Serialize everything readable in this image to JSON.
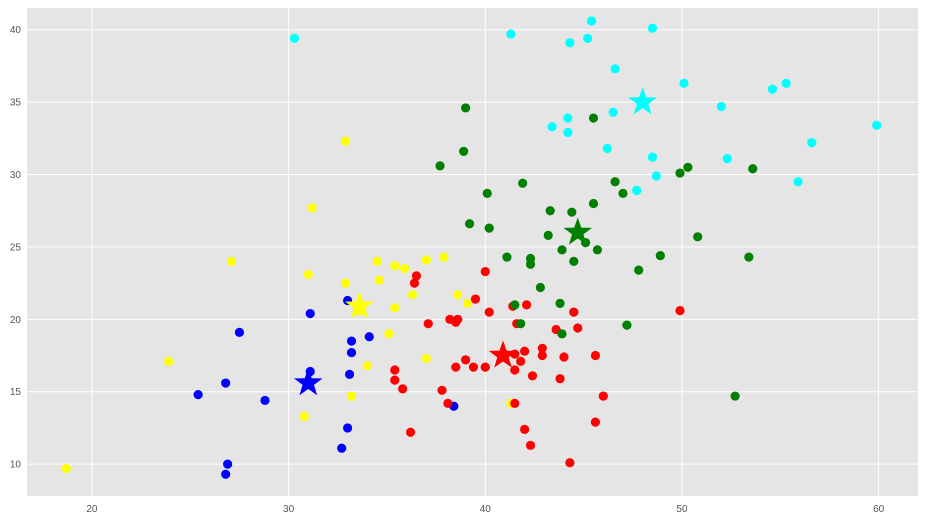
{
  "chart_data": {
    "type": "scatter",
    "title": "",
    "xlabel": "",
    "ylabel": "",
    "xlim": [
      16.7,
      62.0
    ],
    "ylim": [
      7.8,
      41.5
    ],
    "xticks": [
      20,
      30,
      40,
      50,
      60
    ],
    "yticks": [
      10,
      15,
      20,
      25,
      30,
      35,
      40
    ],
    "grid": true,
    "background": "#e5e5e5",
    "grid_color": "#ffffff",
    "series": [
      {
        "color": "#0000ff",
        "points": [
          [
            25.4,
            14.8
          ],
          [
            26.8,
            15.6
          ],
          [
            26.9,
            10.0
          ],
          [
            26.8,
            9.3
          ],
          [
            27.5,
            19.1
          ],
          [
            28.8,
            14.4
          ],
          [
            31.1,
            20.4
          ],
          [
            31.1,
            16.4
          ],
          [
            32.7,
            11.1
          ],
          [
            33.0,
            21.3
          ],
          [
            33.0,
            12.5
          ],
          [
            33.1,
            16.2
          ],
          [
            33.2,
            18.5
          ],
          [
            33.2,
            17.7
          ],
          [
            34.1,
            18.8
          ],
          [
            38.4,
            14.0
          ]
        ],
        "centroid": [
          31.0,
          15.6
        ]
      },
      {
        "color": "#ffff00",
        "points": [
          [
            18.7,
            9.7
          ],
          [
            23.9,
            17.1
          ],
          [
            27.1,
            24.0
          ],
          [
            30.8,
            13.3
          ],
          [
            31.0,
            23.1
          ],
          [
            31.2,
            27.7
          ],
          [
            32.9,
            32.3
          ],
          [
            32.9,
            22.5
          ],
          [
            33.2,
            14.7
          ],
          [
            33.6,
            20.6
          ],
          [
            34.0,
            16.8
          ],
          [
            34.5,
            24.0
          ],
          [
            34.6,
            22.7
          ],
          [
            35.1,
            19.0
          ],
          [
            35.4,
            23.7
          ],
          [
            35.4,
            20.8
          ],
          [
            35.9,
            23.5
          ],
          [
            36.3,
            21.7
          ],
          [
            36.5,
            23.0
          ],
          [
            37.0,
            24.1
          ],
          [
            37.0,
            17.3
          ],
          [
            37.9,
            24.3
          ],
          [
            38.6,
            21.7
          ],
          [
            39.1,
            21.1
          ],
          [
            41.3,
            14.2
          ]
        ],
        "centroid": [
          33.6,
          20.9
        ]
      },
      {
        "color": "#ff0000",
        "points": [
          [
            35.4,
            16.5
          ],
          [
            35.4,
            15.8
          ],
          [
            35.8,
            15.2
          ],
          [
            36.2,
            12.2
          ],
          [
            36.4,
            22.5
          ],
          [
            36.5,
            23.0
          ],
          [
            37.1,
            19.7
          ],
          [
            37.8,
            15.1
          ],
          [
            38.1,
            14.2
          ],
          [
            38.2,
            20.0
          ],
          [
            38.5,
            19.8
          ],
          [
            38.5,
            16.7
          ],
          [
            38.6,
            20.0
          ],
          [
            39.0,
            17.2
          ],
          [
            39.4,
            16.7
          ],
          [
            39.5,
            21.4
          ],
          [
            40.0,
            23.3
          ],
          [
            40.0,
            16.7
          ],
          [
            40.2,
            20.5
          ],
          [
            41.4,
            20.9
          ],
          [
            41.5,
            17.6
          ],
          [
            41.5,
            16.5
          ],
          [
            41.5,
            14.2
          ],
          [
            41.6,
            19.7
          ],
          [
            41.8,
            17.1
          ],
          [
            42.0,
            17.8
          ],
          [
            42.0,
            12.4
          ],
          [
            42.1,
            21.0
          ],
          [
            42.3,
            11.3
          ],
          [
            42.4,
            16.1
          ],
          [
            42.9,
            17.5
          ],
          [
            42.9,
            18.0
          ],
          [
            43.6,
            19.3
          ],
          [
            43.8,
            15.9
          ],
          [
            44.0,
            17.4
          ],
          [
            44.3,
            10.1
          ],
          [
            44.5,
            20.5
          ],
          [
            44.7,
            19.4
          ],
          [
            45.6,
            17.5
          ],
          [
            45.6,
            12.9
          ],
          [
            46.0,
            14.7
          ],
          [
            49.9,
            20.6
          ]
        ],
        "centroid": [
          40.9,
          17.5
        ]
      },
      {
        "color": "#008000",
        "points": [
          [
            37.7,
            30.6
          ],
          [
            38.9,
            31.6
          ],
          [
            39.0,
            34.6
          ],
          [
            39.2,
            26.6
          ],
          [
            40.1,
            28.7
          ],
          [
            40.2,
            26.3
          ],
          [
            41.1,
            24.3
          ],
          [
            41.5,
            21.0
          ],
          [
            41.8,
            19.7
          ],
          [
            41.9,
            29.4
          ],
          [
            42.3,
            24.2
          ],
          [
            42.3,
            23.8
          ],
          [
            42.8,
            22.2
          ],
          [
            43.2,
            25.8
          ],
          [
            43.3,
            27.5
          ],
          [
            43.9,
            19.0
          ],
          [
            43.9,
            24.8
          ],
          [
            43.8,
            21.1
          ],
          [
            44.4,
            27.4
          ],
          [
            44.5,
            24.0
          ],
          [
            45.1,
            25.3
          ],
          [
            45.5,
            33.9
          ],
          [
            45.5,
            28.0
          ],
          [
            45.7,
            24.8
          ],
          [
            46.6,
            29.5
          ],
          [
            47.0,
            28.7
          ],
          [
            47.2,
            19.6
          ],
          [
            47.8,
            23.4
          ],
          [
            48.9,
            24.4
          ],
          [
            49.9,
            30.1
          ],
          [
            50.3,
            30.5
          ],
          [
            50.8,
            25.7
          ],
          [
            52.7,
            14.7
          ],
          [
            53.4,
            24.3
          ],
          [
            53.6,
            30.4
          ]
        ],
        "centroid": [
          44.7,
          26.0
        ]
      },
      {
        "color": "#00ffff",
        "points": [
          [
            30.3,
            39.4
          ],
          [
            41.3,
            39.7
          ],
          [
            43.4,
            33.3
          ],
          [
            44.2,
            33.9
          ],
          [
            44.2,
            32.9
          ],
          [
            44.3,
            39.1
          ],
          [
            45.2,
            39.4
          ],
          [
            45.4,
            40.6
          ],
          [
            46.2,
            31.8
          ],
          [
            46.5,
            34.3
          ],
          [
            46.6,
            37.3
          ],
          [
            47.7,
            28.9
          ],
          [
            48.5,
            31.2
          ],
          [
            48.5,
            40.1
          ],
          [
            48.7,
            29.9
          ],
          [
            50.1,
            36.3
          ],
          [
            52.0,
            34.7
          ],
          [
            52.3,
            31.1
          ],
          [
            54.6,
            35.9
          ],
          [
            55.3,
            36.3
          ],
          [
            55.9,
            29.5
          ],
          [
            56.6,
            32.2
          ],
          [
            59.9,
            33.4
          ]
        ],
        "centroid": [
          48.0,
          35.0
        ]
      }
    ]
  }
}
